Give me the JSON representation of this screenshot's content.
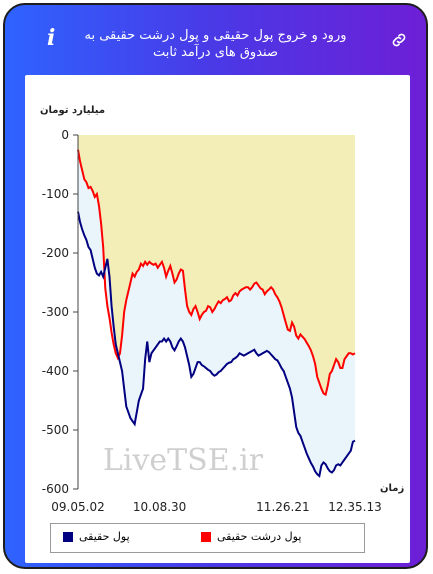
{
  "header": {
    "title": "ورود و خروج پول حقیقی و پول درشت حقیقی به صندوق های درآمد ثابت",
    "info_icon": "info-icon",
    "link_icon": "link-icon"
  },
  "chart_data": {
    "type": "area",
    "ylabel": "میلیارد تومان",
    "xlabel": "زمان",
    "ylim": [
      -600,
      0
    ],
    "yticks": [
      0,
      -100,
      -200,
      -300,
      -400,
      -500,
      -600
    ],
    "x_tick_labels": [
      "09.05.02",
      "10.08.30",
      "11.26.21",
      "12.35.13"
    ],
    "x_tick_positions": [
      0,
      43,
      108,
      146
    ],
    "watermark": "LiveTSE.ir",
    "grid": false,
    "legend_position": "bottom",
    "series": [
      {
        "name": "پول درشت حقیقی",
        "color": "#ff0000",
        "fill": "#f3edb8",
        "values": [
          -25,
          -45,
          -60,
          -75,
          -80,
          -90,
          -88,
          -95,
          -105,
          -100,
          -120,
          -150,
          -190,
          -260,
          -290,
          -310,
          -335,
          -355,
          -370,
          -378,
          -370,
          -340,
          -300,
          -280,
          -265,
          -250,
          -235,
          -240,
          -232,
          -228,
          -218,
          -222,
          -215,
          -220,
          -215,
          -218,
          -220,
          -218,
          -225,
          -220,
          -215,
          -225,
          -240,
          -230,
          -222,
          -235,
          -250,
          -245,
          -235,
          -228,
          -230,
          -262,
          -290,
          -300,
          -305,
          -295,
          -290,
          -300,
          -312,
          -305,
          -300,
          -298,
          -290,
          -292,
          -300,
          -295,
          -288,
          -282,
          -285,
          -280,
          -278,
          -275,
          -282,
          -280,
          -272,
          -268,
          -272,
          -265,
          -262,
          -260,
          -258,
          -258,
          -262,
          -258,
          -252,
          -250,
          -255,
          -260,
          -262,
          -270,
          -265,
          -262,
          -258,
          -262,
          -270,
          -275,
          -282,
          -292,
          -305,
          -318,
          -330,
          -332,
          -318,
          -325,
          -340,
          -345,
          -338,
          -342,
          -346,
          -352,
          -358,
          -365,
          -375,
          -388,
          -410,
          -420,
          -430,
          -438,
          -440,
          -425,
          -405,
          -400,
          -390,
          -380,
          -385,
          -395,
          -395,
          -380,
          -375,
          -370,
          -370,
          -372,
          -370
        ],
        "x_step": 1
      },
      {
        "name": "پول حقیقی",
        "color": "#000080",
        "fill": "#eaf4fb",
        "values": [
          -130,
          -148,
          -160,
          -170,
          -178,
          -190,
          -195,
          -210,
          -225,
          -235,
          -238,
          -232,
          -240,
          -225,
          -210,
          -240,
          -290,
          -325,
          -355,
          -370,
          -385,
          -400,
          -430,
          -460,
          -470,
          -480,
          -485,
          -490,
          -470,
          -450,
          -440,
          -430,
          -380,
          -350,
          -385,
          -370,
          -365,
          -360,
          -355,
          -350,
          -350,
          -345,
          -350,
          -345,
          -350,
          -360,
          -365,
          -358,
          -350,
          -345,
          -350,
          -360,
          -375,
          -390,
          -410,
          -405,
          -395,
          -385,
          -385,
          -390,
          -392,
          -395,
          -398,
          -400,
          -405,
          -408,
          -406,
          -402,
          -400,
          -396,
          -392,
          -388,
          -386,
          -385,
          -380,
          -378,
          -375,
          -370,
          -372,
          -374,
          -372,
          -370,
          -368,
          -366,
          -364,
          -370,
          -374,
          -372,
          -370,
          -368,
          -366,
          -368,
          -372,
          -376,
          -380,
          -382,
          -388,
          -395,
          -400,
          -410,
          -420,
          -430,
          -445,
          -470,
          -495,
          -505,
          -510,
          -520,
          -530,
          -540,
          -548,
          -556,
          -562,
          -570,
          -575,
          -578,
          -560,
          -555,
          -558,
          -565,
          -570,
          -572,
          -568,
          -560,
          -558,
          -560,
          -555,
          -550,
          -545,
          -540,
          -535,
          -520,
          -518
        ],
        "x_step": 1
      }
    ]
  },
  "legend": {
    "items": [
      {
        "label": "پول حقیقی",
        "color": "#000080"
      },
      {
        "label": "پول درشت حقیقی",
        "color": "#ff0000"
      }
    ]
  }
}
